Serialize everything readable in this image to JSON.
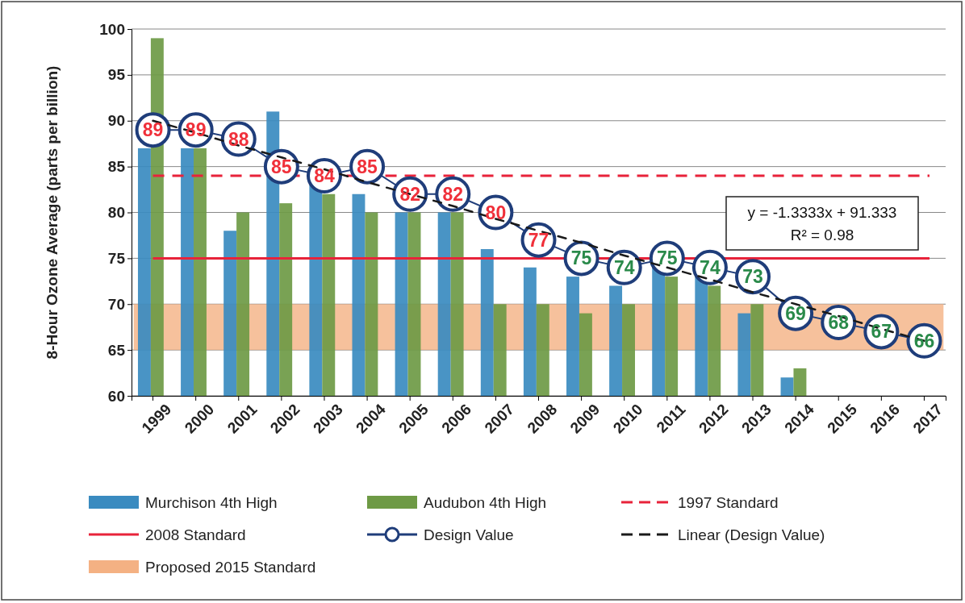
{
  "chart_data": {
    "type": "bar",
    "ylabel": "8-Hour Ozone Average (parts per billion)",
    "categories": [
      "1999",
      "2000",
      "2001",
      "2002",
      "2003",
      "2004",
      "2005",
      "2006",
      "2007",
      "2008",
      "2009",
      "2010",
      "2011",
      "2012",
      "2013",
      "2014",
      "2015",
      "2016",
      "2017"
    ],
    "series": [
      {
        "name": "Murchison 4th High",
        "color": "#3a8bc0",
        "values": [
          87,
          87,
          78,
          91,
          83,
          82,
          80,
          80,
          76,
          74,
          73,
          72,
          74,
          73,
          69,
          62,
          null,
          null,
          null
        ]
      },
      {
        "name": "Audubon 4th High",
        "color": "#6e9a45",
        "values": [
          99,
          87,
          80,
          81,
          82,
          80,
          80,
          80,
          70,
          70,
          69,
          70,
          73,
          72,
          70,
          63,
          null,
          null,
          null
        ]
      },
      {
        "name": "Design Value",
        "type": "line",
        "color": "#1f3d7a",
        "marker": "circle",
        "values": [
          89,
          89,
          88,
          85,
          84,
          85,
          82,
          82,
          80,
          77,
          75,
          74,
          75,
          74,
          73,
          69,
          68,
          67,
          66
        ],
        "value_labels": [
          "89",
          "89",
          "88",
          "85",
          "84",
          "85",
          "82",
          "82",
          "80",
          "77",
          "75",
          "74",
          "75",
          "74",
          "73",
          "69",
          "68",
          "67",
          "66"
        ]
      },
      {
        "name": "Linear (Design Value)",
        "type": "line",
        "color": "#1a1a1a",
        "line_style": "dashed",
        "marker": "none",
        "values": [
          90,
          88.7,
          87.3,
          86,
          84.7,
          83.3,
          82,
          80.7,
          79.3,
          78,
          76.7,
          75.3,
          74,
          72.7,
          71.3,
          70,
          68.7,
          67.3,
          66
        ]
      }
    ],
    "ylim": [
      60,
      100
    ],
    "yticks": [
      60,
      65,
      70,
      75,
      80,
      85,
      90,
      95,
      100
    ],
    "grid": "y",
    "legend": "bottom",
    "ref_lines": [
      {
        "axis": "y",
        "value": 84,
        "label": "1997 Standard",
        "color": "#e8233a",
        "line_style": "dashed"
      },
      {
        "axis": "y",
        "value": 75,
        "label": "2008 Standard",
        "color": "#e8233a",
        "line_style": "solid"
      }
    ],
    "bands": [
      {
        "axis": "y",
        "from": 65,
        "to": 70,
        "label": "Proposed 2015 Standard",
        "color": "#f4b183"
      }
    ],
    "annotations": [
      "y = -1.3333x + 91.333\nR² = 0.98"
    ]
  }
}
